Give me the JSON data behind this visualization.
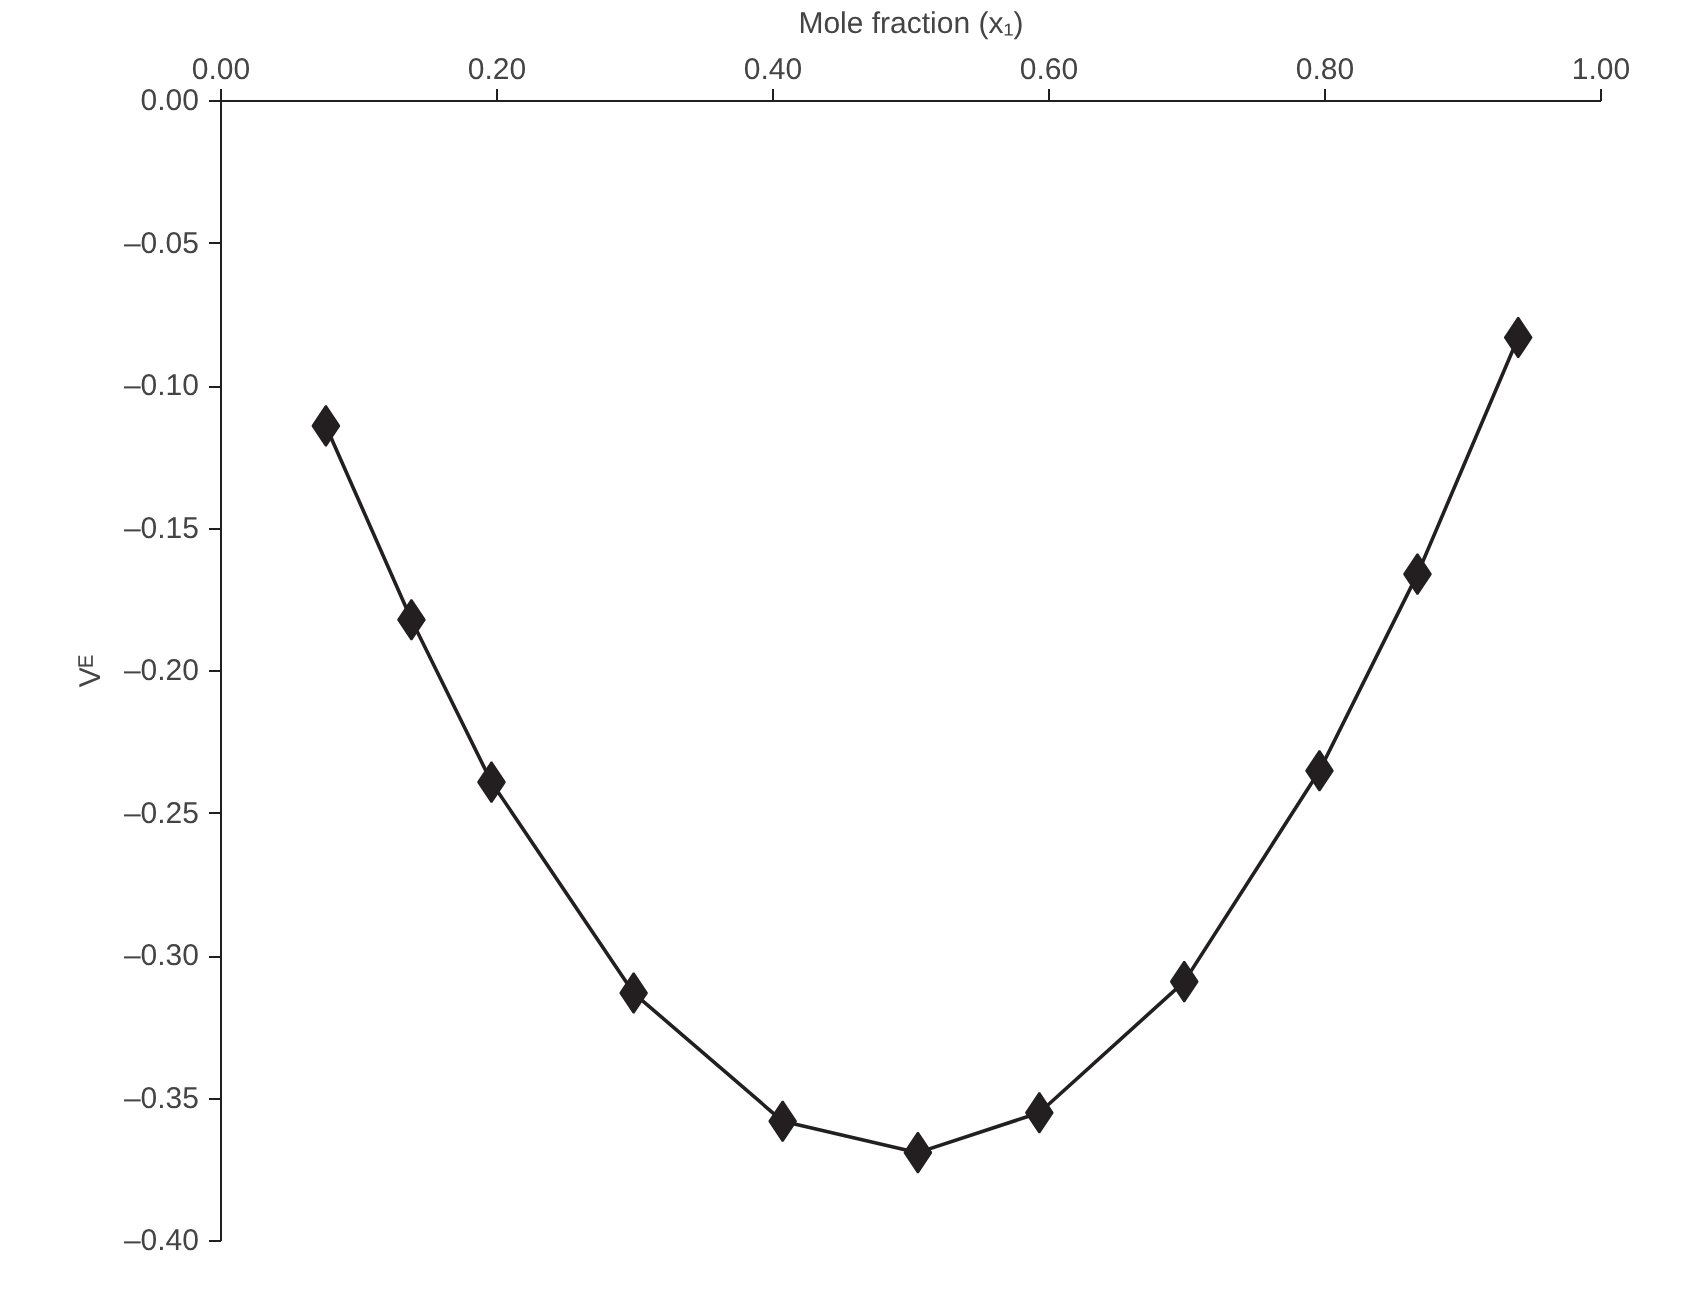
{
  "chart_data": {
    "type": "line",
    "xlabel": "Mole fraction (x₁)",
    "ylabel": "Vᴱ",
    "x": [
      0.076,
      0.138,
      0.196,
      0.299,
      0.407,
      0.505,
      0.593,
      0.698,
      0.796,
      0.867,
      0.94
    ],
    "series": [
      {
        "color": "#231f20",
        "values": [
          -0.114,
          -0.182,
          -0.239,
          -0.313,
          -0.358,
          -0.369,
          -0.355,
          -0.309,
          -0.235,
          -0.166,
          -0.083
        ]
      }
    ],
    "xlim": [
      0.0,
      1.0
    ],
    "xticks": [
      {
        "value": 0,
        "label": "0.00"
      },
      {
        "value": 0.2,
        "label": "0.20"
      },
      {
        "value": 0.4,
        "label": "0.40"
      },
      {
        "value": 0.6,
        "label": "0.60"
      },
      {
        "value": 0.8,
        "label": "0.80"
      },
      {
        "value": 1.0,
        "label": "1.00"
      }
    ],
    "ylim": [
      -0.4,
      0.0
    ],
    "yticks": [
      {
        "value": 0,
        "label": "0.00"
      },
      {
        "value": -0.05,
        "label": "–0.05"
      },
      {
        "value": -0.1,
        "label": "–0.10"
      },
      {
        "value": -0.15,
        "label": "–0.15"
      },
      {
        "value": -0.2,
        "label": "–0.20"
      },
      {
        "value": -0.25,
        "label": "–0.25"
      },
      {
        "value": -0.3,
        "label": "–0.30"
      },
      {
        "value": -0.35,
        "label": "–0.35"
      },
      {
        "value": -0.4,
        "label": "–0.40"
      }
    ],
    "grid": false,
    "marker": "diamond",
    "line_style": "solid"
  }
}
